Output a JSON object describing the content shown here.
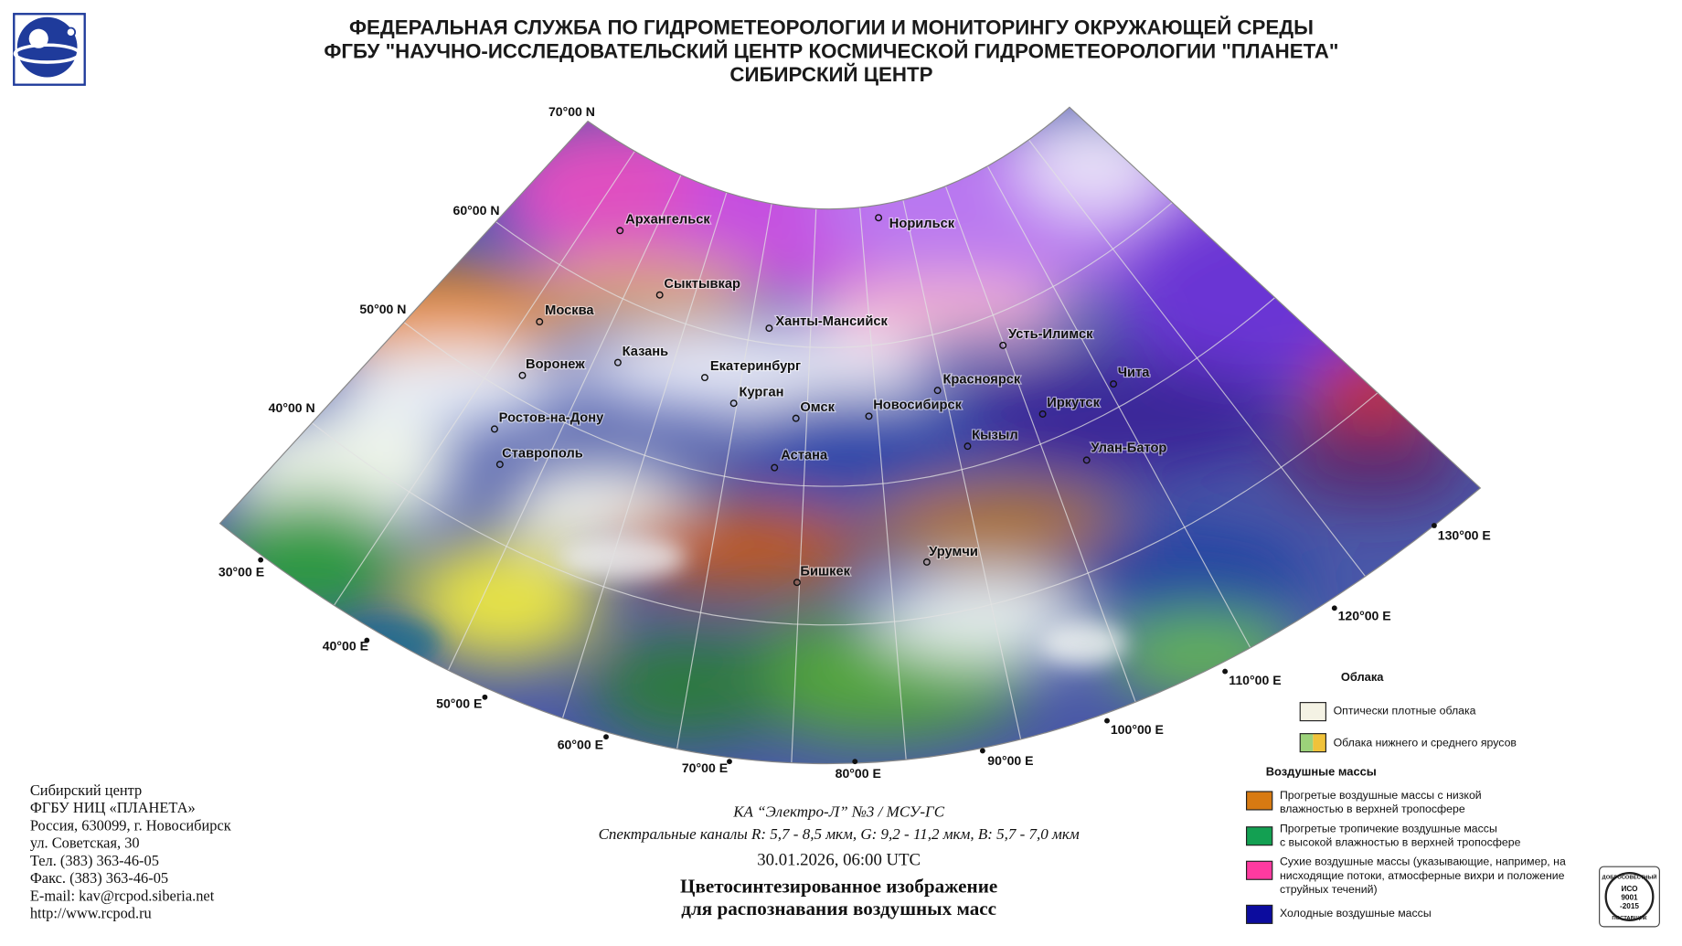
{
  "header": {
    "lines": [
      "ФЕДЕРАЛЬНАЯ СЛУЖБА ПО ГИДРОМЕТЕОРОЛОГИИ И МОНИТОРИНГУ ОКРУЖАЮЩЕЙ СРЕДЫ",
      "ФГБУ \"НАУЧНО-ИССЛЕДОВАТЕЛЬСКИЙ ЦЕНТР КОСМИЧЕСКОЙ ГИДРОМЕТЕОРОЛОГИИ \"ПЛАНЕТА\"",
      "СИБИРСКИЙ ЦЕНТР"
    ]
  },
  "map": {
    "latitudes": [
      "70°00 N",
      "60°00 N",
      "50°00 N",
      "40°00 N"
    ],
    "longitudes": [
      "30°00 E",
      "40°00 E",
      "50°00 E",
      "60°00 E",
      "70°00 E",
      "80°00 E",
      "90°00 E",
      "100°00 E",
      "110°00 E",
      "120°00 E",
      "130°00 E"
    ],
    "cities": [
      "Архангельск",
      "Норильск",
      "Сыктывкар",
      "Москва",
      "Ханты-Мансийск",
      "Усть-Илимск",
      "Казань",
      "Воронеж",
      "Екатеринбург",
      "Красноярск",
      "Чита",
      "Курган",
      "Омск",
      "Новосибирск",
      "Иркутск",
      "Ростов-на-Дону",
      "Кызыл",
      "Ставрополь",
      "Улан-Батор",
      "Астана",
      "Урумчи",
      "Бишкек"
    ]
  },
  "legend": {
    "clouds": {
      "title": "Облака",
      "items": [
        "Оптически плотные облака",
        "Облака нижнего и среднего ярусов"
      ]
    },
    "air_masses": {
      "title": "Воздушные массы",
      "items": [
        [
          "Прогретые воздушные массы с низкой",
          "влажностью в верхней тропосфере"
        ],
        [
          "Прогретые тропичекие воздушные массы",
          "с высокой влажностью в верхней тропосфере"
        ],
        [
          "Сухие воздушные массы (указывающие, например, на",
          "нисходящие потоки, атмосферные вихри и положение",
          "струйных течений)"
        ],
        [
          "Холодные воздушные массы"
        ]
      ]
    }
  },
  "address": [
    "Сибирский центр",
    "ФГБУ НИЦ «ПЛАНЕТА»",
    "Россия, 630099, г. Новосибирск",
    "ул. Советская, 30",
    "Тел. (383) 363-46-05",
    "Факс. (383) 363-46-05",
    "E-mail: kav@rcpod.siberia.net",
    "http://www.rcpod.ru"
  ],
  "caption": {
    "satellite": "КА “Электро-Л” №3 / МСУ-ГС",
    "channels": "Спектральные каналы R: 5,7 - 8,5 мкм, G: 9,2 - 11,2 мкм, B: 5,7 - 7,0 мкм",
    "datetime": "30.01.2026, 06:00 UTC",
    "title": [
      "Цветосинтезированное изображение",
      "для распознавания воздушных масс"
    ]
  },
  "badge": [
    "ДОБРОСОВЕСТНЫЙ",
    "ИСО",
    "9001",
    "-2015",
    "ПОСТАВЩИК"
  ]
}
